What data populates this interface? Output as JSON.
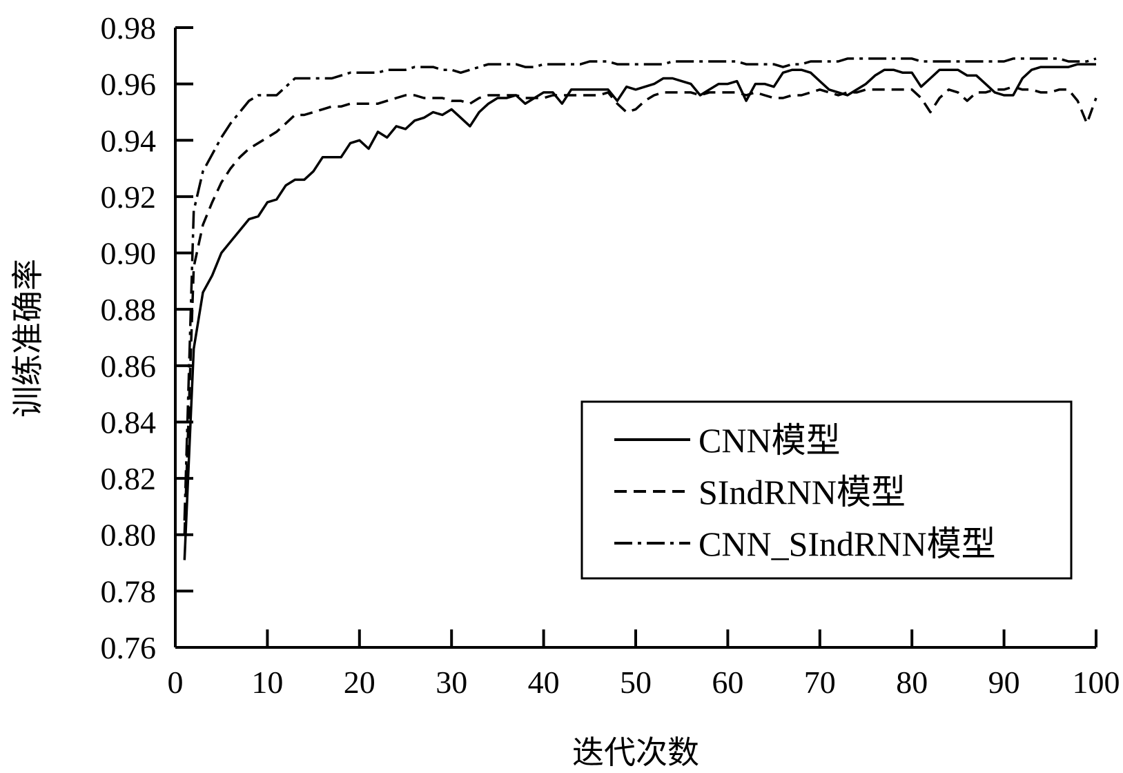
{
  "chart_data": {
    "type": "line",
    "xlabel": "迭代次数",
    "ylabel": "训练准确率",
    "xlim": [
      0,
      100
    ],
    "ylim": [
      0.76,
      0.98
    ],
    "xticks": [
      "0",
      "10",
      "20",
      "30",
      "40",
      "50",
      "60",
      "70",
      "80",
      "90",
      "100"
    ],
    "yticks": [
      "0.76",
      "0.78",
      "0.80",
      "0.82",
      "0.84",
      "0.86",
      "0.88",
      "0.90",
      "0.92",
      "0.94",
      "0.96",
      "0.98"
    ],
    "grid": false,
    "legend_position": "lower-right",
    "series": [
      {
        "name": "CNN模型",
        "line_style": "solid",
        "color": "#000000",
        "x": [
          1,
          2,
          3,
          4,
          5,
          6,
          7,
          8,
          9,
          10,
          11,
          12,
          13,
          14,
          15,
          16,
          17,
          18,
          19,
          20,
          21,
          22,
          23,
          24,
          25,
          26,
          27,
          28,
          29,
          30,
          31,
          32,
          33,
          34,
          35,
          36,
          37,
          38,
          39,
          40,
          41,
          42,
          43,
          44,
          45,
          46,
          47,
          48,
          49,
          50,
          51,
          52,
          53,
          54,
          55,
          56,
          57,
          58,
          59,
          60,
          61,
          62,
          63,
          64,
          65,
          66,
          67,
          68,
          69,
          70,
          71,
          72,
          73,
          74,
          75,
          76,
          77,
          78,
          79,
          80,
          81,
          82,
          83,
          84,
          85,
          86,
          87,
          88,
          89,
          90,
          91,
          92,
          93,
          94,
          95,
          96,
          97,
          98,
          99,
          100
        ],
        "y": [
          0.791,
          0.866,
          0.886,
          0.892,
          0.9,
          0.904,
          0.908,
          0.912,
          0.913,
          0.918,
          0.919,
          0.924,
          0.926,
          0.926,
          0.929,
          0.934,
          0.934,
          0.934,
          0.939,
          0.94,
          0.937,
          0.943,
          0.941,
          0.945,
          0.944,
          0.947,
          0.948,
          0.95,
          0.949,
          0.951,
          0.948,
          0.945,
          0.95,
          0.953,
          0.955,
          0.955,
          0.956,
          0.953,
          0.955,
          0.957,
          0.957,
          0.953,
          0.958,
          0.958,
          0.958,
          0.958,
          0.958,
          0.954,
          0.959,
          0.958,
          0.959,
          0.96,
          0.962,
          0.962,
          0.961,
          0.96,
          0.956,
          0.958,
          0.96,
          0.96,
          0.961,
          0.954,
          0.96,
          0.96,
          0.959,
          0.964,
          0.965,
          0.965,
          0.964,
          0.961,
          0.958,
          0.957,
          0.956,
          0.958,
          0.96,
          0.963,
          0.965,
          0.965,
          0.964,
          0.964,
          0.959,
          0.962,
          0.965,
          0.965,
          0.965,
          0.963,
          0.963,
          0.96,
          0.957,
          0.956,
          0.956,
          0.962,
          0.965,
          0.966,
          0.966,
          0.966,
          0.966,
          0.967,
          0.967,
          0.967
        ]
      },
      {
        "name": "SIndRNN模型",
        "line_style": "dashed",
        "color": "#000000",
        "x": [
          1,
          2,
          3,
          4,
          5,
          6,
          7,
          8,
          9,
          10,
          11,
          12,
          13,
          14,
          15,
          16,
          17,
          18,
          19,
          20,
          21,
          22,
          23,
          24,
          25,
          26,
          27,
          28,
          29,
          30,
          31,
          32,
          33,
          34,
          35,
          36,
          37,
          38,
          39,
          40,
          41,
          42,
          43,
          44,
          45,
          46,
          47,
          48,
          49,
          50,
          51,
          52,
          53,
          54,
          55,
          56,
          57,
          58,
          59,
          60,
          61,
          62,
          63,
          64,
          65,
          66,
          67,
          68,
          69,
          70,
          71,
          72,
          73,
          74,
          75,
          76,
          77,
          78,
          79,
          80,
          81,
          82,
          83,
          84,
          85,
          86,
          87,
          88,
          89,
          90,
          91,
          92,
          93,
          94,
          95,
          96,
          97,
          98,
          99,
          100
        ],
        "y": [
          0.8,
          0.895,
          0.91,
          0.918,
          0.925,
          0.93,
          0.934,
          0.937,
          0.939,
          0.941,
          0.943,
          0.946,
          0.949,
          0.949,
          0.95,
          0.951,
          0.952,
          0.952,
          0.953,
          0.953,
          0.953,
          0.953,
          0.954,
          0.955,
          0.956,
          0.956,
          0.955,
          0.955,
          0.955,
          0.954,
          0.954,
          0.953,
          0.955,
          0.956,
          0.956,
          0.956,
          0.956,
          0.955,
          0.955,
          0.955,
          0.956,
          0.956,
          0.956,
          0.956,
          0.956,
          0.956,
          0.957,
          0.953,
          0.95,
          0.951,
          0.954,
          0.956,
          0.957,
          0.957,
          0.957,
          0.957,
          0.956,
          0.957,
          0.957,
          0.957,
          0.957,
          0.956,
          0.957,
          0.956,
          0.955,
          0.955,
          0.956,
          0.956,
          0.957,
          0.958,
          0.957,
          0.956,
          0.957,
          0.957,
          0.958,
          0.958,
          0.958,
          0.958,
          0.958,
          0.958,
          0.955,
          0.95,
          0.955,
          0.958,
          0.957,
          0.954,
          0.957,
          0.957,
          0.958,
          0.958,
          0.959,
          0.958,
          0.958,
          0.957,
          0.957,
          0.958,
          0.958,
          0.954,
          0.946,
          0.955
        ]
      },
      {
        "name": "CNN_SIndRNN模型",
        "line_style": "dash-dot",
        "color": "#000000",
        "x": [
          1,
          2,
          3,
          4,
          5,
          6,
          7,
          8,
          9,
          10,
          11,
          12,
          13,
          14,
          15,
          16,
          17,
          18,
          19,
          20,
          21,
          22,
          23,
          24,
          25,
          26,
          27,
          28,
          29,
          30,
          31,
          32,
          33,
          34,
          35,
          36,
          37,
          38,
          39,
          40,
          41,
          42,
          43,
          44,
          45,
          46,
          47,
          48,
          49,
          50,
          51,
          52,
          53,
          54,
          55,
          56,
          57,
          58,
          59,
          60,
          61,
          62,
          63,
          64,
          65,
          66,
          67,
          68,
          69,
          70,
          71,
          72,
          73,
          74,
          75,
          76,
          77,
          78,
          79,
          80,
          81,
          82,
          83,
          84,
          85,
          86,
          87,
          88,
          89,
          90,
          91,
          92,
          93,
          94,
          95,
          96,
          97,
          98,
          99,
          100
        ],
        "y": [
          0.805,
          0.915,
          0.929,
          0.935,
          0.941,
          0.946,
          0.95,
          0.954,
          0.956,
          0.956,
          0.956,
          0.959,
          0.962,
          0.962,
          0.962,
          0.962,
          0.962,
          0.963,
          0.964,
          0.964,
          0.964,
          0.964,
          0.965,
          0.965,
          0.965,
          0.966,
          0.966,
          0.966,
          0.965,
          0.965,
          0.964,
          0.965,
          0.966,
          0.967,
          0.967,
          0.967,
          0.967,
          0.966,
          0.966,
          0.967,
          0.967,
          0.967,
          0.967,
          0.967,
          0.968,
          0.968,
          0.968,
          0.967,
          0.967,
          0.967,
          0.967,
          0.967,
          0.967,
          0.968,
          0.968,
          0.968,
          0.968,
          0.968,
          0.968,
          0.968,
          0.968,
          0.967,
          0.967,
          0.967,
          0.967,
          0.966,
          0.967,
          0.967,
          0.968,
          0.968,
          0.968,
          0.968,
          0.969,
          0.969,
          0.969,
          0.969,
          0.969,
          0.969,
          0.969,
          0.969,
          0.968,
          0.968,
          0.968,
          0.968,
          0.968,
          0.968,
          0.968,
          0.968,
          0.968,
          0.968,
          0.969,
          0.969,
          0.969,
          0.969,
          0.969,
          0.969,
          0.968,
          0.968,
          0.968,
          0.969
        ]
      }
    ]
  }
}
